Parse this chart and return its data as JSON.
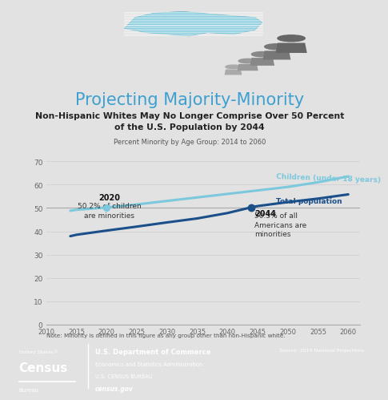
{
  "title_main": "Projecting Majority-Minority",
  "title_sub1": "Non-Hispanic Whites May No Longer Comprise Over 50 Percent",
  "title_sub2": "of the U.S. Population by 2044",
  "subtitle_chart": "Percent Minority by Age Group: 2014 to 2060",
  "note": "Note: Minority is defined in this figure as any group other than non-Hispanic white.",
  "source": "Source: 2014 National Projections",
  "children_x": [
    2014,
    2015,
    2020,
    2025,
    2030,
    2035,
    2040,
    2045,
    2050,
    2055,
    2060
  ],
  "children_y": [
    48.8,
    49.2,
    50.2,
    51.5,
    53.0,
    54.5,
    56.0,
    57.5,
    59.0,
    61.0,
    63.5
  ],
  "total_x": [
    2014,
    2015,
    2020,
    2025,
    2030,
    2035,
    2040,
    2044,
    2045,
    2050,
    2055,
    2060
  ],
  "total_y": [
    37.9,
    38.5,
    40.3,
    42.0,
    43.8,
    45.5,
    47.8,
    50.3,
    50.8,
    52.5,
    54.0,
    55.8
  ],
  "children_color": "#7cc8dc",
  "total_color": "#1a4f8a",
  "bg_color": "#e2e2e2",
  "footer_color": "#3da0d0",
  "xlim": [
    2010,
    2062
  ],
  "ylim": [
    0,
    75
  ],
  "yticks": [
    0,
    10,
    20,
    30,
    40,
    50,
    60,
    70
  ],
  "xticks": [
    2010,
    2015,
    2020,
    2025,
    2030,
    2035,
    2040,
    2045,
    2050,
    2055,
    2060
  ],
  "highlight_year_children": 2020,
  "highlight_pct_children": 50.2,
  "highlight_year_total": 2044,
  "highlight_pct_total": 50.3,
  "label_children": "Children (under 18 years)",
  "label_total": "Total population",
  "annot_2020_line1": "2020",
  "annot_2020_line2": "50.2% of children",
  "annot_2020_line3": "are minorities",
  "annot_2044_line1": "2044",
  "annot_2044_line2": "50.3% of all",
  "annot_2044_line3": "Americans are",
  "annot_2044_line4": "minorities",
  "footer_text1": "U.S. Department of Commerce",
  "footer_text2": "Economics and Statistics Administration",
  "footer_text3": "U.S. CENSUS BUREAU",
  "footer_text4": "census.gov"
}
